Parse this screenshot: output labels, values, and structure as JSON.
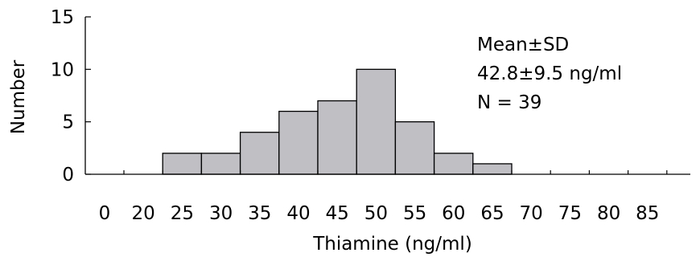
{
  "chart_data": {
    "type": "bar",
    "categories": [
      "0",
      "20",
      "25",
      "30",
      "35",
      "40",
      "45",
      "50",
      "55",
      "60",
      "65",
      "70",
      "75",
      "80",
      "85"
    ],
    "values": [
      0,
      0,
      2,
      2,
      4,
      6,
      7,
      10,
      5,
      2,
      1,
      0,
      0,
      0,
      0
    ],
    "title": "",
    "xlabel": "Thiamine (ng/ml)",
    "ylabel": "Number",
    "ylim": [
      0,
      15
    ],
    "yticks": [
      "0",
      "5",
      "10",
      "15"
    ],
    "annotation": [
      "Mean±SD",
      "42.8±9.5 ng/ml",
      "N = 39"
    ],
    "legend": "none",
    "grid": false,
    "colors": {
      "bar_fill": "#bfbfc4",
      "bar_stroke": "#000000",
      "axis": "#000000"
    }
  }
}
